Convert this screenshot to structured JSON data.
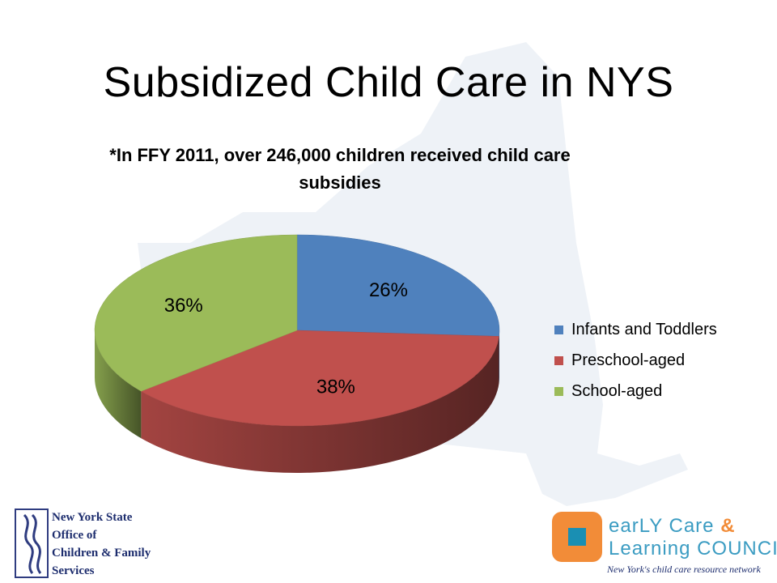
{
  "slide": {
    "title": "Subsidized Child Care in NYS"
  },
  "chart_data": {
    "type": "pie",
    "title": "*In FFY 2011, over 246,000 children received child care subsidies",
    "categories": [
      "Infants and Toddlers",
      "Preschool-aged",
      "School-aged"
    ],
    "values": [
      26,
      38,
      36
    ],
    "data_labels": [
      "26%",
      "38%",
      "36%"
    ],
    "colors": [
      "#4f81bd",
      "#c0504d",
      "#9bbb59"
    ],
    "legend_position": "right",
    "style": "3d"
  },
  "logos": {
    "nys": {
      "line1": "New York State",
      "line2": "Office of",
      "line3": "Children & Family",
      "line4": "Services"
    },
    "ecl": {
      "line1": "earLY Care",
      "amp": "&",
      "line2": "Learning COUNCIL",
      "tagline": "New York's child care resource network"
    }
  }
}
